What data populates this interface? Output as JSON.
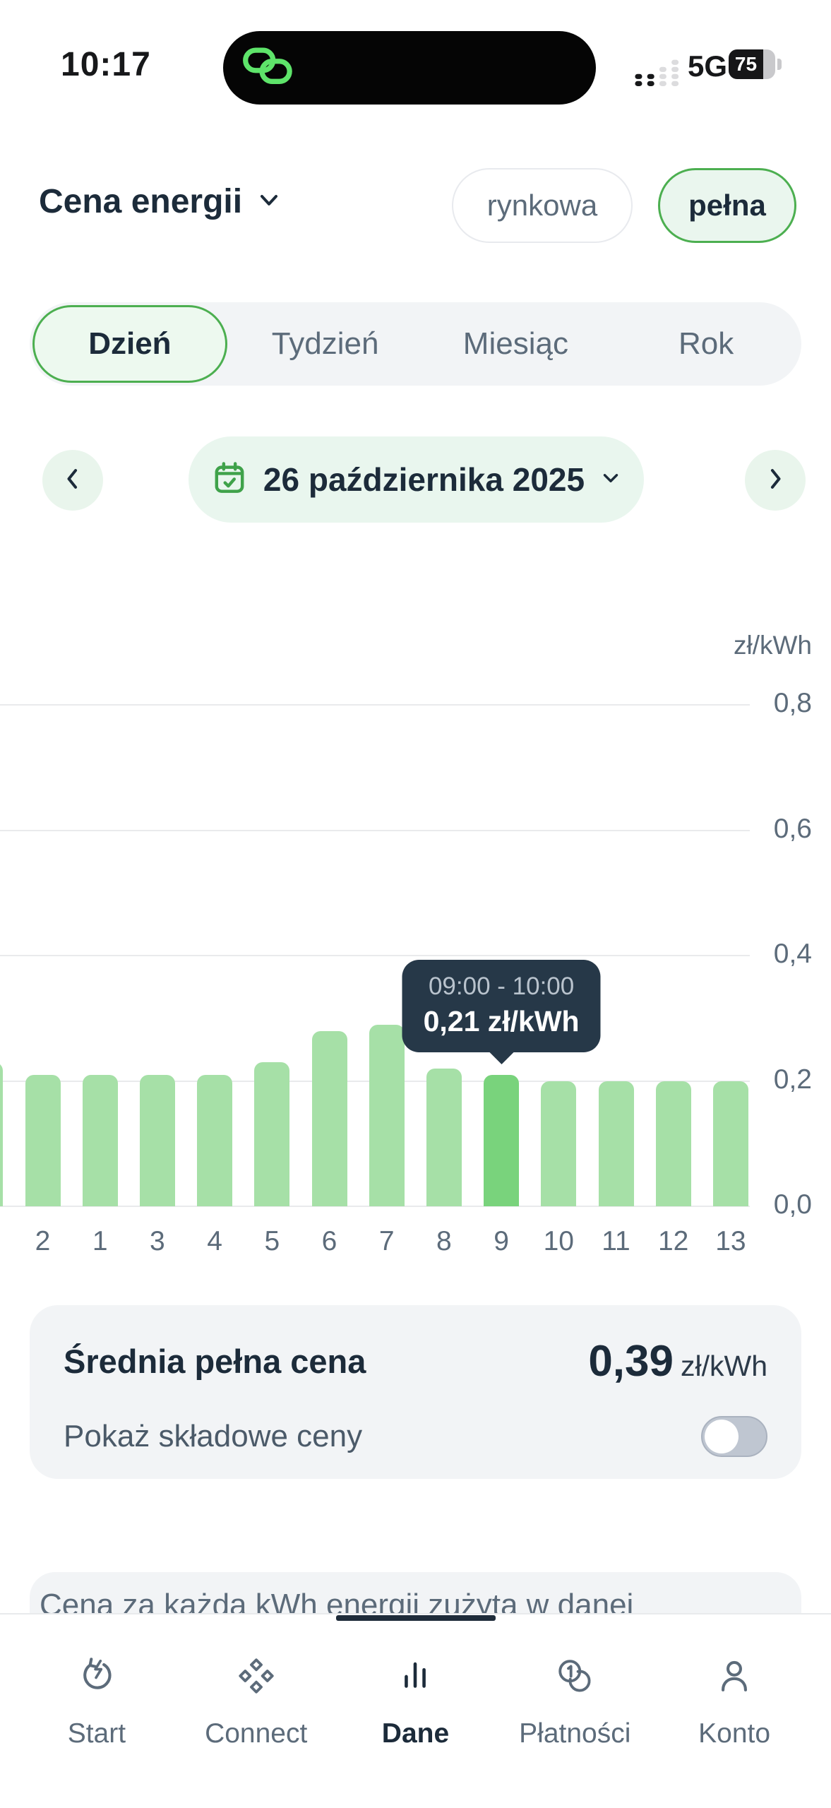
{
  "status_bar": {
    "time": "10:17",
    "network_label": "5G",
    "battery_percent": "75"
  },
  "header": {
    "title": "Cena energii",
    "price_type_options": [
      {
        "label": "rynkowa",
        "selected": false
      },
      {
        "label": "pełna",
        "selected": true
      }
    ]
  },
  "period_tabs": [
    {
      "label": "Dzień",
      "selected": true
    },
    {
      "label": "Tydzień",
      "selected": false
    },
    {
      "label": "Miesiąc",
      "selected": false
    },
    {
      "label": "Rok",
      "selected": false
    }
  ],
  "date_nav": {
    "date_label": "26 października 2025"
  },
  "chart_data": {
    "type": "bar",
    "title": "",
    "xlabel": "",
    "ylabel": "zł/kWh",
    "unit_label": "zł/kWh",
    "ylim": [
      0,
      0.8
    ],
    "grid": true,
    "legend": false,
    "yticks": [
      {
        "value": 0.8,
        "label": "0,8"
      },
      {
        "value": 0.6,
        "label": "0,6"
      },
      {
        "value": 0.4,
        "label": "0,4"
      },
      {
        "value": 0.2,
        "label": "0,2"
      },
      {
        "value": 0.0,
        "label": "0,0"
      }
    ],
    "bars": [
      {
        "label": "",
        "value": 0.23,
        "selected": false
      },
      {
        "label": "2",
        "value": 0.21,
        "selected": false
      },
      {
        "label": "1",
        "value": 0.21,
        "selected": false
      },
      {
        "label": "3",
        "value": 0.21,
        "selected": false
      },
      {
        "label": "4",
        "value": 0.21,
        "selected": false
      },
      {
        "label": "5",
        "value": 0.23,
        "selected": false
      },
      {
        "label": "6",
        "value": 0.28,
        "selected": false
      },
      {
        "label": "7",
        "value": 0.29,
        "selected": false
      },
      {
        "label": "8",
        "value": 0.22,
        "selected": false
      },
      {
        "label": "9",
        "value": 0.21,
        "selected": true
      },
      {
        "label": "10",
        "value": 0.2,
        "selected": false
      },
      {
        "label": "11",
        "value": 0.2,
        "selected": false
      },
      {
        "label": "12",
        "value": 0.2,
        "selected": false
      },
      {
        "label": "13",
        "value": 0.2,
        "selected": false
      }
    ],
    "selected_tooltip": {
      "time_range": "09:00 - 10:00",
      "value_label": "0,21 zł/kWh"
    },
    "bar_color": "#a6e0a7",
    "selected_bar_color": "#79d37c"
  },
  "summary_card": {
    "title": "Średnia pełna cena",
    "value": "0,39",
    "unit": "zł/kWh",
    "toggle_label": "Pokaż składowe ceny",
    "toggle_on": false
  },
  "info_panel": {
    "text": "Cena za każdą kWh energii zużytą w danej"
  },
  "bottom_nav": {
    "items": [
      {
        "label": "Start",
        "icon": "start-icon",
        "active": false
      },
      {
        "label": "Connect",
        "icon": "connect-icon",
        "active": false
      },
      {
        "label": "Dane",
        "icon": "bar-chart-icon",
        "active": true
      },
      {
        "label": "Płatności",
        "icon": "payments-icon",
        "active": false
      },
      {
        "label": "Konto",
        "icon": "account-icon",
        "active": false
      }
    ]
  },
  "colors": {
    "accent_green": "#4caf50",
    "light_green_bg": "#eaf6ee",
    "bar_green": "#a6e0a7",
    "selected_bar_green": "#79d37c",
    "tooltip_bg": "#263848",
    "card_bg": "#f2f4f6",
    "text_dark": "#1c2b3a",
    "text_gray": "#5c6b7a",
    "island_icon_green": "#5ee46a"
  }
}
